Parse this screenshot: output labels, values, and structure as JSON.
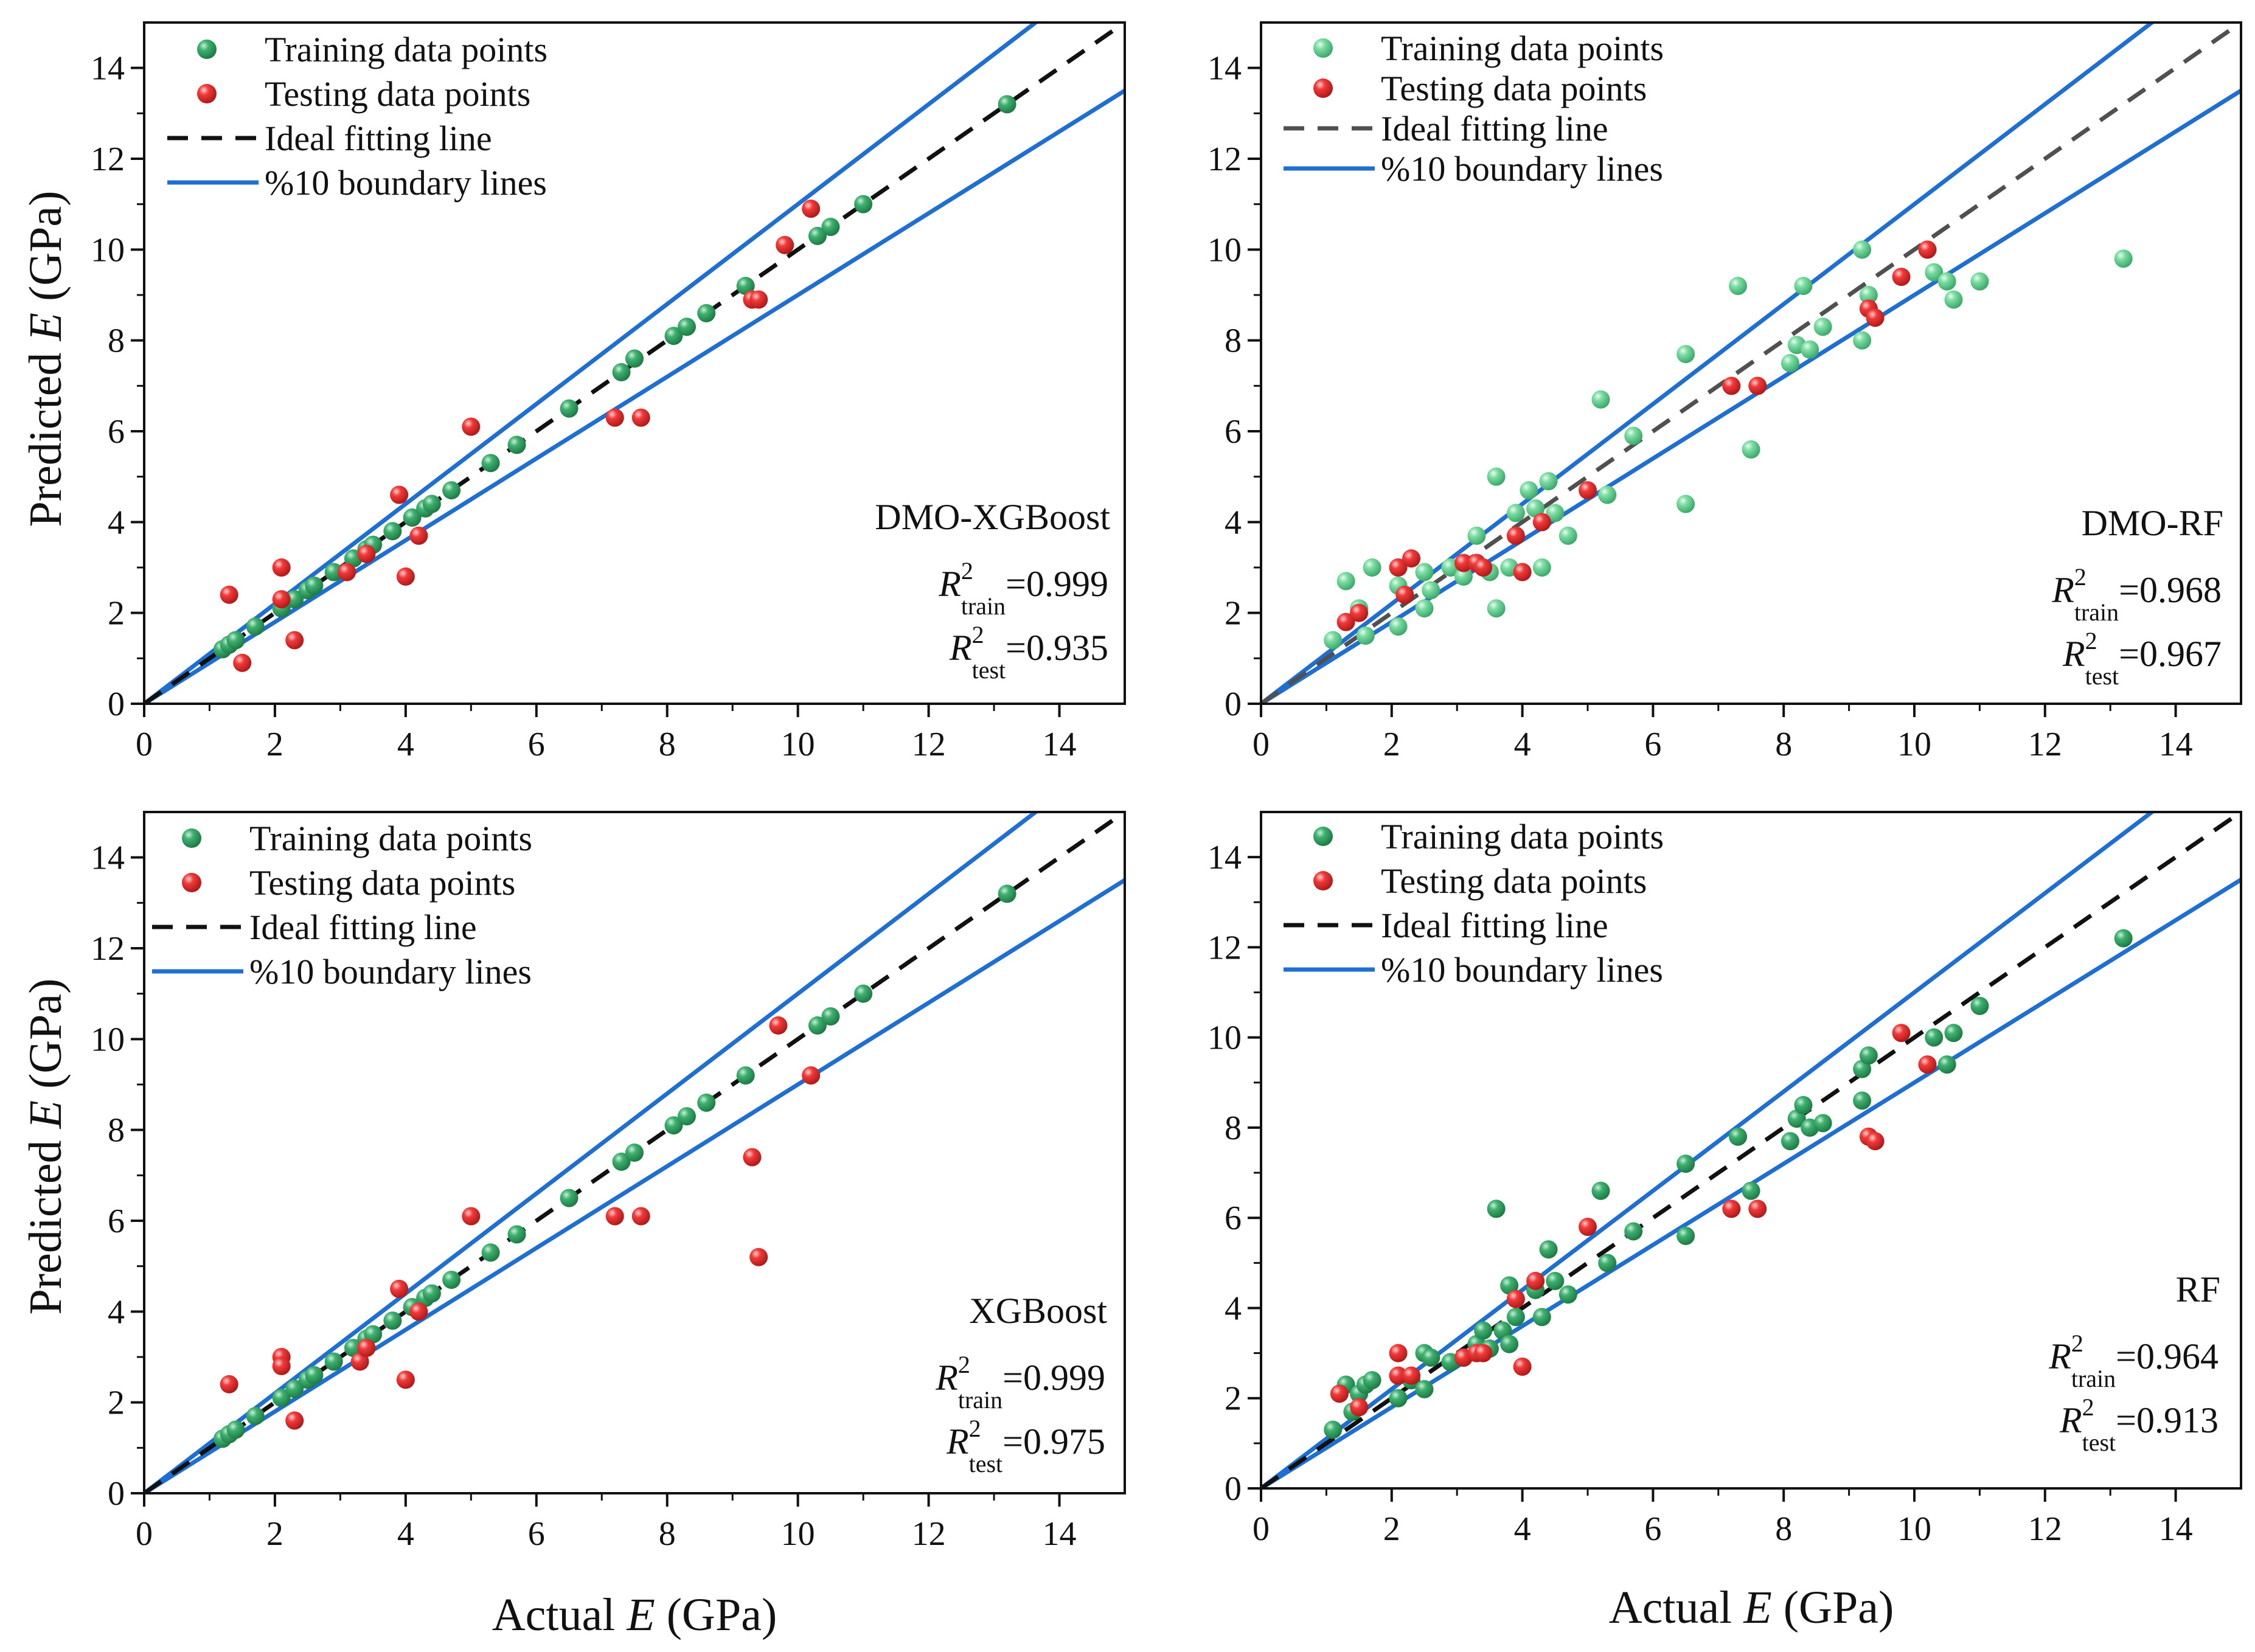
{
  "figure": {
    "xlabel_prefix": "Actual ",
    "xlabel_var": "E",
    "xlabel_suffix": " (GPa)",
    "ylabel_prefix": "Predicted ",
    "ylabel_var": "E",
    "ylabel_suffix": " (GPa)"
  },
  "colors": {
    "train_dark": "#2e9e5b",
    "train_light": "#5fcf8f",
    "test": "#e8282b",
    "boundary": "#1f6fd1",
    "ideal_black": "#111111",
    "ideal_gray": "#505050"
  },
  "chart_data": [
    {
      "type": "scatter",
      "title": "DMO-XGBoost",
      "xlabel": "Actual E (GPa)",
      "ylabel": "Predicted E (GPa)",
      "xlim": [
        0,
        15
      ],
      "ylim": [
        0,
        15
      ],
      "xticks": [
        0,
        2,
        4,
        6,
        8,
        10,
        12,
        14
      ],
      "yticks": [
        0,
        2,
        4,
        6,
        8,
        10,
        12,
        14
      ],
      "legend": [
        "Training data points",
        "Testing data points",
        "Ideal fitting line",
        "%10 boundary lines"
      ],
      "legend_position": "top-left",
      "metrics": {
        "train_base": "R",
        "train_sup": "2",
        "train_sub": "train",
        "train_value": "=0.999",
        "test_base": "R",
        "test_sup": "2",
        "test_sub": "test",
        "test_value": "=0.935"
      },
      "train_style": "dark",
      "ideal_style": "black",
      "series": [
        {
          "name": "Training data points",
          "points": [
            [
              1.2,
              1.2
            ],
            [
              1.3,
              1.3
            ],
            [
              1.4,
              1.4
            ],
            [
              1.7,
              1.7
            ],
            [
              2.1,
              2.1
            ],
            [
              2.3,
              2.3
            ],
            [
              2.5,
              2.5
            ],
            [
              2.6,
              2.6
            ],
            [
              2.9,
              2.9
            ],
            [
              3.2,
              3.2
            ],
            [
              3.4,
              3.4
            ],
            [
              3.5,
              3.5
            ],
            [
              3.8,
              3.8
            ],
            [
              4.1,
              4.1
            ],
            [
              4.3,
              4.3
            ],
            [
              4.4,
              4.4
            ],
            [
              4.7,
              4.7
            ],
            [
              5.3,
              5.3
            ],
            [
              5.7,
              5.7
            ],
            [
              6.5,
              6.5
            ],
            [
              7.3,
              7.3
            ],
            [
              7.5,
              7.6
            ],
            [
              8.1,
              8.1
            ],
            [
              8.3,
              8.3
            ],
            [
              8.6,
              8.6
            ],
            [
              9.2,
              9.2
            ],
            [
              10.3,
              10.3
            ],
            [
              10.5,
              10.5
            ],
            [
              11.0,
              11.0
            ],
            [
              13.2,
              13.2
            ]
          ]
        },
        {
          "name": "Testing data points",
          "points": [
            [
              1.3,
              2.4
            ],
            [
              1.5,
              0.9
            ],
            [
              2.1,
              3.0
            ],
            [
              2.1,
              2.3
            ],
            [
              2.3,
              1.4
            ],
            [
              3.1,
              2.9
            ],
            [
              3.4,
              3.3
            ],
            [
              3.9,
              4.6
            ],
            [
              4.0,
              2.8
            ],
            [
              4.2,
              3.7
            ],
            [
              5.0,
              6.1
            ],
            [
              7.2,
              6.3
            ],
            [
              7.6,
              6.3
            ],
            [
              9.3,
              8.9
            ],
            [
              9.4,
              8.9
            ],
            [
              9.8,
              10.1
            ],
            [
              10.2,
              10.9
            ]
          ]
        }
      ]
    },
    {
      "type": "scatter",
      "title": "DMO-RF",
      "xlabel": "Actual E (GPa)",
      "ylabel": "Predicted E (GPa)",
      "xlim": [
        0,
        15
      ],
      "ylim": [
        0,
        15
      ],
      "xticks": [
        0,
        2,
        4,
        6,
        8,
        10,
        12,
        14
      ],
      "yticks": [
        0,
        2,
        4,
        6,
        8,
        10,
        12,
        14
      ],
      "legend": [
        "Training data points",
        "Testing data points",
        "Ideal fitting line",
        "%10 boundary lines"
      ],
      "legend_position": "top-left",
      "metrics": {
        "train_base": "R",
        "train_sup": "2",
        "train_sub": "train",
        "train_value": "=0.968",
        "test_base": "R",
        "test_sup": "2",
        "test_sub": "test",
        "test_value": "=0.967"
      },
      "train_style": "light",
      "ideal_style": "gray",
      "series": [
        {
          "name": "Training data points",
          "points": [
            [
              1.1,
              1.4
            ],
            [
              1.3,
              2.7
            ],
            [
              1.5,
              2.1
            ],
            [
              1.6,
              1.5
            ],
            [
              1.7,
              3.0
            ],
            [
              2.1,
              1.7
            ],
            [
              2.1,
              2.6
            ],
            [
              2.5,
              2.1
            ],
            [
              2.5,
              2.9
            ],
            [
              2.6,
              2.5
            ],
            [
              2.9,
              3.0
            ],
            [
              3.1,
              2.8
            ],
            [
              3.3,
              3.7
            ],
            [
              3.5,
              2.9
            ],
            [
              3.6,
              5.0
            ],
            [
              3.6,
              2.1
            ],
            [
              3.8,
              3.0
            ],
            [
              3.9,
              4.2
            ],
            [
              4.1,
              4.7
            ],
            [
              4.2,
              4.3
            ],
            [
              4.3,
              3.0
            ],
            [
              4.4,
              4.9
            ],
            [
              4.5,
              4.2
            ],
            [
              4.7,
              3.7
            ],
            [
              5.2,
              6.7
            ],
            [
              5.3,
              4.6
            ],
            [
              5.7,
              5.9
            ],
            [
              6.5,
              4.4
            ],
            [
              6.5,
              7.7
            ],
            [
              7.3,
              9.2
            ],
            [
              7.5,
              5.6
            ],
            [
              8.1,
              7.5
            ],
            [
              8.2,
              7.9
            ],
            [
              8.3,
              9.2
            ],
            [
              8.4,
              7.8
            ],
            [
              8.6,
              8.3
            ],
            [
              9.2,
              8.0
            ],
            [
              9.2,
              10.0
            ],
            [
              9.3,
              9.0
            ],
            [
              10.3,
              9.5
            ],
            [
              10.5,
              9.3
            ],
            [
              10.6,
              8.9
            ],
            [
              11.0,
              9.3
            ],
            [
              13.2,
              9.8
            ]
          ]
        },
        {
          "name": "Testing data points",
          "points": [
            [
              1.3,
              1.8
            ],
            [
              1.5,
              2.0
            ],
            [
              2.1,
              3.0
            ],
            [
              2.2,
              2.4
            ],
            [
              2.3,
              3.2
            ],
            [
              3.1,
              3.1
            ],
            [
              3.3,
              3.1
            ],
            [
              3.4,
              3.0
            ],
            [
              3.9,
              3.7
            ],
            [
              4.0,
              2.9
            ],
            [
              4.3,
              4.0
            ],
            [
              5.0,
              4.7
            ],
            [
              7.2,
              7.0
            ],
            [
              7.6,
              7.0
            ],
            [
              9.3,
              8.7
            ],
            [
              9.4,
              8.5
            ],
            [
              9.8,
              9.4
            ],
            [
              10.2,
              10.0
            ]
          ]
        }
      ]
    },
    {
      "type": "scatter",
      "title": "XGBoost",
      "xlabel": "Actual E (GPa)",
      "ylabel": "Predicted E (GPa)",
      "xlim": [
        0,
        15
      ],
      "ylim": [
        0,
        15
      ],
      "xticks": [
        0,
        2,
        4,
        6,
        8,
        10,
        12,
        14
      ],
      "yticks": [
        0,
        2,
        4,
        6,
        8,
        10,
        12,
        14
      ],
      "legend": [
        "Training data points",
        "Testing data points",
        "Ideal fitting line",
        "%10 boundary lines"
      ],
      "legend_position": "top-left",
      "metrics": {
        "train_base": "R",
        "train_sup": "2",
        "train_sub": "train",
        "train_value": "=0.999",
        "test_base": "R",
        "test_sup": "2",
        "test_sub": "test",
        "test_value": "=0.975"
      },
      "train_style": "dark",
      "ideal_style": "black",
      "series": [
        {
          "name": "Training data points",
          "points": [
            [
              1.2,
              1.2
            ],
            [
              1.3,
              1.3
            ],
            [
              1.4,
              1.4
            ],
            [
              1.7,
              1.7
            ],
            [
              2.1,
              2.1
            ],
            [
              2.3,
              2.3
            ],
            [
              2.5,
              2.5
            ],
            [
              2.6,
              2.6
            ],
            [
              2.9,
              2.9
            ],
            [
              3.2,
              3.2
            ],
            [
              3.4,
              3.4
            ],
            [
              3.5,
              3.5
            ],
            [
              3.8,
              3.8
            ],
            [
              4.1,
              4.1
            ],
            [
              4.3,
              4.3
            ],
            [
              4.4,
              4.4
            ],
            [
              4.7,
              4.7
            ],
            [
              5.3,
              5.3
            ],
            [
              5.7,
              5.7
            ],
            [
              6.5,
              6.5
            ],
            [
              7.3,
              7.3
            ],
            [
              7.5,
              7.5
            ],
            [
              8.1,
              8.1
            ],
            [
              8.3,
              8.3
            ],
            [
              8.6,
              8.6
            ],
            [
              9.2,
              9.2
            ],
            [
              10.3,
              10.3
            ],
            [
              10.5,
              10.5
            ],
            [
              11.0,
              11.0
            ],
            [
              13.2,
              13.2
            ]
          ]
        },
        {
          "name": "Testing data points",
          "points": [
            [
              1.3,
              2.4
            ],
            [
              2.1,
              3.0
            ],
            [
              2.1,
              2.8
            ],
            [
              2.3,
              1.6
            ],
            [
              3.3,
              2.9
            ],
            [
              3.4,
              3.2
            ],
            [
              3.9,
              4.5
            ],
            [
              4.0,
              2.5
            ],
            [
              4.2,
              4.0
            ],
            [
              5.0,
              6.1
            ],
            [
              7.2,
              6.1
            ],
            [
              7.6,
              6.1
            ],
            [
              9.3,
              7.4
            ],
            [
              9.4,
              5.2
            ],
            [
              9.7,
              10.3
            ],
            [
              10.2,
              9.2
            ]
          ]
        }
      ]
    },
    {
      "type": "scatter",
      "title": "RF",
      "xlabel": "Actual E (GPa)",
      "ylabel": "Predicted E (GPa)",
      "xlim": [
        0,
        15
      ],
      "ylim": [
        0,
        15
      ],
      "xticks": [
        0,
        2,
        4,
        6,
        8,
        10,
        12,
        14
      ],
      "yticks": [
        0,
        2,
        4,
        6,
        8,
        10,
        12,
        14
      ],
      "legend": [
        "Training data points",
        "Testing data points",
        "Ideal fitting line",
        "%10 boundary lines"
      ],
      "legend_position": "top-left",
      "metrics": {
        "train_base": "R",
        "train_sup": "2",
        "train_sub": "train",
        "train_value": "=0.964",
        "test_base": "R",
        "test_sup": "2",
        "test_sub": "test",
        "test_value": "=0.913"
      },
      "train_style": "dark",
      "ideal_style": "black",
      "series": [
        {
          "name": "Training data points",
          "points": [
            [
              1.1,
              1.3
            ],
            [
              1.3,
              2.3
            ],
            [
              1.4,
              1.7
            ],
            [
              1.5,
              2.1
            ],
            [
              1.6,
              2.3
            ],
            [
              1.7,
              2.4
            ],
            [
              2.1,
              2.0
            ],
            [
              2.1,
              2.5
            ],
            [
              2.3,
              2.4
            ],
            [
              2.5,
              2.2
            ],
            [
              2.5,
              3.0
            ],
            [
              2.6,
              2.9
            ],
            [
              2.9,
              2.8
            ],
            [
              3.1,
              2.9
            ],
            [
              3.3,
              3.2
            ],
            [
              3.4,
              3.5
            ],
            [
              3.5,
              3.1
            ],
            [
              3.6,
              6.2
            ],
            [
              3.7,
              3.5
            ],
            [
              3.8,
              3.2
            ],
            [
              3.8,
              4.5
            ],
            [
              3.9,
              3.8
            ],
            [
              4.2,
              4.4
            ],
            [
              4.3,
              3.8
            ],
            [
              4.4,
              5.3
            ],
            [
              4.5,
              4.6
            ],
            [
              4.7,
              4.3
            ],
            [
              5.2,
              6.6
            ],
            [
              5.3,
              5.0
            ],
            [
              5.7,
              5.7
            ],
            [
              6.5,
              5.6
            ],
            [
              6.5,
              7.2
            ],
            [
              7.3,
              7.8
            ],
            [
              7.5,
              6.6
            ],
            [
              8.1,
              7.7
            ],
            [
              8.2,
              8.2
            ],
            [
              8.3,
              8.5
            ],
            [
              8.4,
              8.0
            ],
            [
              8.6,
              8.1
            ],
            [
              9.2,
              8.6
            ],
            [
              9.2,
              9.3
            ],
            [
              9.3,
              9.6
            ],
            [
              10.3,
              10.0
            ],
            [
              10.5,
              9.4
            ],
            [
              10.6,
              10.1
            ],
            [
              11.0,
              10.7
            ],
            [
              13.2,
              12.2
            ]
          ]
        },
        {
          "name": "Testing data points",
          "points": [
            [
              1.2,
              2.1
            ],
            [
              1.5,
              1.8
            ],
            [
              2.1,
              3.0
            ],
            [
              2.1,
              2.5
            ],
            [
              2.3,
              2.5
            ],
            [
              3.1,
              2.9
            ],
            [
              3.3,
              3.0
            ],
            [
              3.4,
              3.0
            ],
            [
              3.9,
              4.2
            ],
            [
              4.0,
              2.7
            ],
            [
              4.2,
              4.6
            ],
            [
              5.0,
              5.8
            ],
            [
              7.2,
              6.2
            ],
            [
              7.6,
              6.2
            ],
            [
              9.3,
              7.8
            ],
            [
              9.4,
              7.7
            ],
            [
              9.8,
              10.1
            ],
            [
              10.2,
              9.4
            ]
          ]
        }
      ]
    }
  ]
}
